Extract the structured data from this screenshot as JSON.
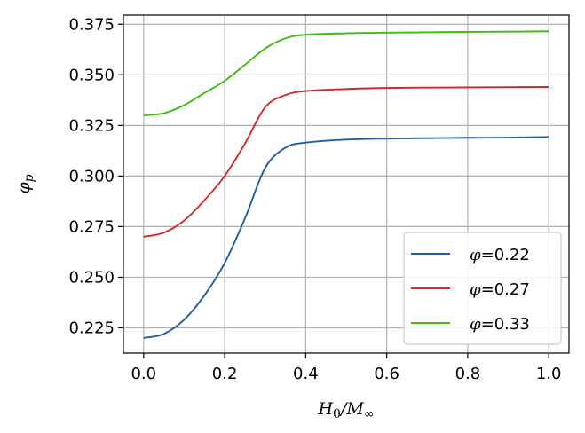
{
  "chart_data": {
    "type": "line",
    "title": "",
    "xlabel": "H_0/M_∞",
    "ylabel": "φ_p",
    "xlim": [
      -0.05,
      1.05
    ],
    "ylim": [
      0.2125,
      0.3795
    ],
    "xticks": [
      0.0,
      0.2,
      0.4,
      0.6,
      0.8,
      1.0
    ],
    "xtick_labels": [
      "0.0",
      "0.2",
      "0.4",
      "0.6",
      "0.8",
      "1.0"
    ],
    "yticks": [
      0.225,
      0.25,
      0.275,
      0.3,
      0.325,
      0.35,
      0.375
    ],
    "ytick_labels": [
      "0.225",
      "0.250",
      "0.275",
      "0.300",
      "0.325",
      "0.350",
      "0.375"
    ],
    "grid": true,
    "legend_position": "bottom-right",
    "x": [
      0.0,
      0.05,
      0.1,
      0.15,
      0.2,
      0.25,
      0.3,
      0.35,
      0.4,
      0.5,
      0.6,
      0.7,
      0.8,
      0.9,
      1.0
    ],
    "series": [
      {
        "name": "φ=0.22",
        "legend_symbol": "φ",
        "legend_value": "=0.22",
        "color": "#1f5fa0",
        "values": [
          0.22,
          0.222,
          0.229,
          0.241,
          0.257,
          0.279,
          0.304,
          0.314,
          0.3165,
          0.318,
          0.3185,
          0.3187,
          0.3189,
          0.319,
          0.3193
        ]
      },
      {
        "name": "φ=0.27",
        "legend_symbol": "φ",
        "legend_value": "=0.27",
        "color": "#d62728",
        "values": [
          0.27,
          0.272,
          0.278,
          0.288,
          0.3,
          0.316,
          0.334,
          0.34,
          0.342,
          0.343,
          0.3435,
          0.3437,
          0.3438,
          0.3439,
          0.344
        ]
      },
      {
        "name": "φ=0.33",
        "legend_symbol": "φ",
        "legend_value": "=0.33",
        "color": "#3cbc12",
        "values": [
          0.33,
          0.331,
          0.335,
          0.341,
          0.347,
          0.355,
          0.363,
          0.368,
          0.3698,
          0.3705,
          0.3708,
          0.371,
          0.3712,
          0.3713,
          0.3715
        ]
      }
    ]
  }
}
